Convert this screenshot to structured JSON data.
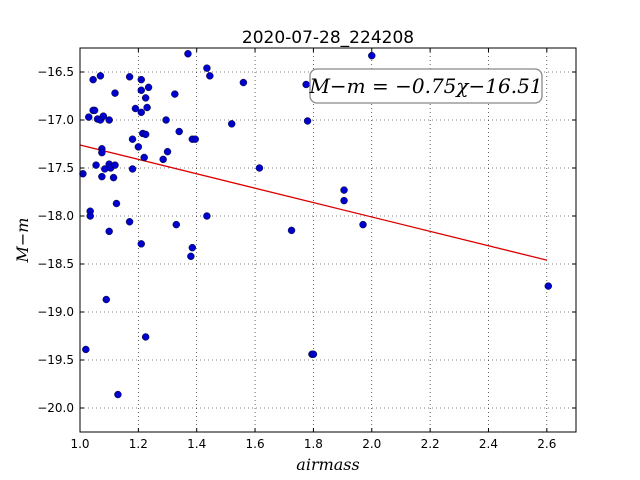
{
  "chart_data": {
    "type": "scatter",
    "title": "2020-07-28_224208",
    "xlabel": "airmass",
    "ylabel": "M−m",
    "xlim": [
      1.0,
      2.7
    ],
    "ylim": [
      -20.25,
      -16.25
    ],
    "y_inverted": true,
    "grid": true,
    "x_ticks": [
      1.0,
      1.2,
      1.4,
      1.6,
      1.8,
      2.0,
      2.2,
      2.4,
      2.6
    ],
    "x_tick_labels": [
      "1.0",
      "1.2",
      "1.4",
      "1.6",
      "1.8",
      "2.0",
      "2.2",
      "2.4",
      "2.6"
    ],
    "y_ticks": [
      -16.5,
      -17.0,
      -17.5,
      -18.0,
      -18.5,
      -19.0,
      -19.5,
      -20.0
    ],
    "y_tick_labels": [
      "−16.5",
      "−17.0",
      "−17.5",
      "−18.0",
      "−18.5",
      "−19.0",
      "−19.5",
      "−20.0"
    ],
    "annotation": "M−m = −0.75χ−16.51",
    "marker_color": "#0000cc",
    "line_color": "#dd0000",
    "fit": {
      "slope": -0.75,
      "intercept": -16.51,
      "x_range": [
        1.0,
        2.6
      ]
    },
    "series": [
      {
        "points": [
          [
            1.01,
            -17.56
          ],
          [
            1.02,
            -19.39
          ],
          [
            1.03,
            -16.97
          ],
          [
            1.035,
            -17.95
          ],
          [
            1.035,
            -18.0
          ],
          [
            1.045,
            -16.58
          ],
          [
            1.045,
            -16.9
          ],
          [
            1.05,
            -16.9
          ],
          [
            1.055,
            -17.47
          ],
          [
            1.06,
            -16.99
          ],
          [
            1.07,
            -16.54
          ],
          [
            1.07,
            -17.0
          ],
          [
            1.075,
            -17.3
          ],
          [
            1.075,
            -17.34
          ],
          [
            1.075,
            -17.59
          ],
          [
            1.08,
            -16.96
          ],
          [
            1.085,
            -17.51
          ],
          [
            1.09,
            -18.87
          ],
          [
            1.1,
            -17.0
          ],
          [
            1.1,
            -17.46
          ],
          [
            1.1,
            -18.16
          ],
          [
            1.105,
            -17.5
          ],
          [
            1.115,
            -17.6
          ],
          [
            1.12,
            -16.72
          ],
          [
            1.12,
            -17.47
          ],
          [
            1.125,
            -17.87
          ],
          [
            1.13,
            -19.86
          ],
          [
            1.17,
            -16.55
          ],
          [
            1.17,
            -18.06
          ],
          [
            1.18,
            -17.2
          ],
          [
            1.18,
            -17.51
          ],
          [
            1.19,
            -16.88
          ],
          [
            1.2,
            -17.28
          ],
          [
            1.21,
            -16.58
          ],
          [
            1.21,
            -16.69
          ],
          [
            1.21,
            -16.92
          ],
          [
            1.21,
            -18.29
          ],
          [
            1.215,
            -17.14
          ],
          [
            1.22,
            -17.39
          ],
          [
            1.225,
            -16.77
          ],
          [
            1.225,
            -17.15
          ],
          [
            1.225,
            -19.26
          ],
          [
            1.23,
            -16.87
          ],
          [
            1.235,
            -16.66
          ],
          [
            1.285,
            -17.41
          ],
          [
            1.295,
            -17.0
          ],
          [
            1.3,
            -17.33
          ],
          [
            1.325,
            -16.73
          ],
          [
            1.33,
            -18.09
          ],
          [
            1.34,
            -17.12
          ],
          [
            1.37,
            -16.31
          ],
          [
            1.38,
            -18.42
          ],
          [
            1.385,
            -18.33
          ],
          [
            1.385,
            -17.2
          ],
          [
            1.395,
            -17.2
          ],
          [
            1.435,
            -16.46
          ],
          [
            1.435,
            -18.0
          ],
          [
            1.445,
            -16.54
          ],
          [
            1.52,
            -17.04
          ],
          [
            1.56,
            -16.61
          ],
          [
            1.615,
            -17.5
          ],
          [
            1.725,
            -18.15
          ],
          [
            1.775,
            -16.63
          ],
          [
            1.78,
            -17.01
          ],
          [
            1.795,
            -19.44
          ],
          [
            1.8,
            -19.44
          ],
          [
            1.905,
            -17.73
          ],
          [
            1.905,
            -17.84
          ],
          [
            1.97,
            -18.09
          ],
          [
            2.0,
            -16.33
          ],
          [
            2.605,
            -18.73
          ]
        ]
      }
    ]
  }
}
